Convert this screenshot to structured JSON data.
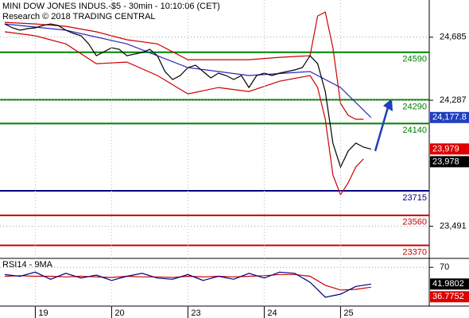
{
  "chart_data": [
    {
      "type": "line",
      "title": "MINI DOW JONES INDUS.-$5 - 30min - 10:10:06 (CET)",
      "subtitle": "Research © 2018 TRADING CENTRAL",
      "xlim": [
        0,
        55
      ],
      "ylim": [
        23288,
        24920
      ],
      "yticks": [
        {
          "value": 24685,
          "label": "24,685"
        },
        {
          "value": 24287,
          "label": "24,287"
        },
        {
          "value": 23491,
          "label": "23,491"
        }
      ],
      "levels": [
        {
          "value": 24590,
          "color": "#008000"
        },
        {
          "value": 24290,
          "color": "#008000"
        },
        {
          "value": 24140,
          "color": "#008000"
        },
        {
          "value": 23715,
          "color": "#000080"
        },
        {
          "value": 23560,
          "color": "#cc0000"
        },
        {
          "value": 23370,
          "color": "#cc0000"
        }
      ],
      "series": [
        {
          "color": "#cc0000",
          "x": [
            0,
            4,
            8,
            12,
            16,
            20,
            24,
            28,
            32,
            36,
            40,
            41,
            42,
            43,
            44,
            45,
            46,
            47
          ],
          "values": [
            24779,
            24769,
            24754,
            24719,
            24669,
            24643,
            24543,
            24543,
            24543,
            24558,
            24568,
            24819,
            24844,
            24618,
            24267,
            24192,
            24167,
            24167
          ]
        },
        {
          "color": "#cc0000",
          "x": [
            0,
            4,
            8,
            12,
            16,
            20,
            24,
            28,
            32,
            36,
            40,
            41,
            42,
            43,
            44,
            45,
            46,
            47
          ],
          "values": [
            24719,
            24694,
            24643,
            24518,
            24528,
            24443,
            24327,
            24367,
            24342,
            24407,
            24443,
            24367,
            24167,
            23815,
            23690,
            23765,
            23865,
            23916
          ]
        },
        {
          "color": "#2a2ab8",
          "x": [
            0,
            8,
            16,
            24,
            32,
            40,
            44,
            48
          ],
          "values": [
            24769,
            24729,
            24643,
            24493,
            24443,
            24468,
            24367,
            24177.8
          ]
        },
        {
          "color": "#000000",
          "x": [
            0,
            1,
            2,
            3,
            4,
            5,
            6,
            7,
            8,
            9,
            10,
            11,
            12,
            13,
            14,
            15,
            16,
            17,
            18,
            19,
            20,
            21,
            22,
            23,
            24,
            25,
            26,
            27,
            28,
            29,
            30,
            31,
            32,
            33,
            34,
            35,
            36,
            37,
            38,
            39,
            40,
            41,
            42,
            43,
            44,
            45,
            46,
            47,
            48
          ],
          "values": [
            24769,
            24744,
            24729,
            24739,
            24744,
            24759,
            24769,
            24759,
            24729,
            24709,
            24694,
            24643,
            24568,
            24593,
            24618,
            24608,
            24568,
            24578,
            24588,
            24608,
            24568,
            24468,
            24418,
            24443,
            24493,
            24508,
            24468,
            24428,
            24458,
            24443,
            24418,
            24443,
            24367,
            24443,
            24458,
            24443,
            24458,
            24468,
            24478,
            24493,
            24568,
            24518,
            24342,
            24016,
            23865,
            23966,
            24016,
            23991,
            23978
          ]
        }
      ],
      "price_labels": [
        {
          "value": 24177.8,
          "label": "24,177.8",
          "color": "#1f3fbf"
        },
        {
          "value": 23979,
          "label": "23,979",
          "color": "#dd0000"
        },
        {
          "value": 23978,
          "label": "23,978",
          "color": "#000000"
        }
      ]
    },
    {
      "type": "line",
      "title": "RSI14 - 9MA",
      "xlim": [
        0,
        55
      ],
      "ylim": [
        5,
        85
      ],
      "yticks": [
        70
      ],
      "xticks": [
        {
          "value": 4,
          "label": "19"
        },
        {
          "value": 14,
          "label": "20"
        },
        {
          "value": 24,
          "label": "23"
        },
        {
          "value": 34,
          "label": "24"
        },
        {
          "value": 44,
          "label": "25"
        }
      ],
      "series": [
        {
          "color": "#cc0000",
          "x": [
            0,
            2,
            4,
            6,
            8,
            10,
            12,
            14,
            16,
            18,
            20,
            22,
            24,
            26,
            28,
            30,
            32,
            34,
            36,
            38,
            40,
            42,
            44,
            46,
            48
          ],
          "values": [
            55,
            56,
            55,
            55,
            54,
            55,
            54,
            53,
            55,
            54,
            54,
            53,
            55,
            54,
            55,
            54,
            55,
            56,
            58,
            58,
            55,
            40,
            32,
            33,
            36.7752
          ]
        },
        {
          "color": "#000080",
          "x": [
            0,
            2,
            4,
            6,
            8,
            10,
            12,
            14,
            16,
            18,
            20,
            22,
            24,
            26,
            28,
            30,
            32,
            34,
            36,
            38,
            40,
            42,
            44,
            46,
            48
          ],
          "values": [
            58,
            55,
            62,
            50,
            60,
            52,
            57,
            48,
            55,
            60,
            52,
            50,
            58,
            48,
            55,
            50,
            60,
            52,
            62,
            60,
            45,
            20,
            25,
            38,
            41.9802
          ]
        }
      ],
      "price_labels": [
        {
          "value": 41.9802,
          "label": "41.9802",
          "color": "#000000"
        },
        {
          "value": 36.7752,
          "label": "36.7752",
          "color": "#dd0000"
        }
      ]
    }
  ]
}
